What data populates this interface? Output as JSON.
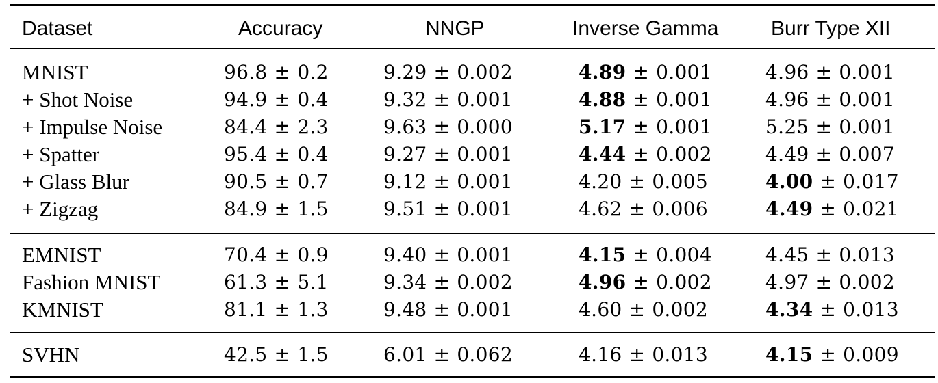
{
  "headers": [
    "Dataset",
    "Accuracy",
    "NNGP",
    "Inverse Gamma",
    "Burr Type XII"
  ],
  "rows": [
    {
      "dataset": "MNIST",
      "accuracy": {
        "mean": "96.8",
        "std": "0.2"
      },
      "nngp": {
        "mean": "9.29",
        "std": "0.002"
      },
      "inverse_gamma": {
        "mean": "4.89",
        "std": "0.001"
      },
      "burr": {
        "mean": "4.96",
        "std": "0.001"
      },
      "bold": "inverse_gamma"
    },
    {
      "dataset": "+ Shot Noise",
      "accuracy": {
        "mean": "94.9",
        "std": "0.4"
      },
      "nngp": {
        "mean": "9.32",
        "std": "0.001"
      },
      "inverse_gamma": {
        "mean": "4.88",
        "std": "0.001"
      },
      "burr": {
        "mean": "4.96",
        "std": "0.001"
      },
      "bold": "inverse_gamma"
    },
    {
      "dataset": "+ Impulse Noise",
      "accuracy": {
        "mean": "84.4",
        "std": "2.3"
      },
      "nngp": {
        "mean": "9.63",
        "std": "0.000"
      },
      "inverse_gamma": {
        "mean": "5.17",
        "std": "0.001"
      },
      "burr": {
        "mean": "5.25",
        "std": "0.001"
      },
      "bold": "inverse_gamma"
    },
    {
      "dataset": "+ Spatter",
      "accuracy": {
        "mean": "95.4",
        "std": "0.4"
      },
      "nngp": {
        "mean": "9.27",
        "std": "0.001"
      },
      "inverse_gamma": {
        "mean": "4.44",
        "std": "0.002"
      },
      "burr": {
        "mean": "4.49",
        "std": "0.007"
      },
      "bold": "inverse_gamma"
    },
    {
      "dataset": "+ Glass Blur",
      "accuracy": {
        "mean": "90.5",
        "std": "0.7"
      },
      "nngp": {
        "mean": "9.12",
        "std": "0.001"
      },
      "inverse_gamma": {
        "mean": "4.20",
        "std": "0.005"
      },
      "burr": {
        "mean": "4.00",
        "std": "0.017"
      },
      "bold": "burr"
    },
    {
      "dataset": "+ Zigzag",
      "accuracy": {
        "mean": "84.9",
        "std": "1.5"
      },
      "nngp": {
        "mean": "9.51",
        "std": "0.001"
      },
      "inverse_gamma": {
        "mean": "4.62",
        "std": "0.006"
      },
      "burr": {
        "mean": "4.49",
        "std": "0.021"
      },
      "bold": "burr"
    },
    {
      "dataset": "EMNIST",
      "accuracy": {
        "mean": "70.4",
        "std": "0.9"
      },
      "nngp": {
        "mean": "9.40",
        "std": "0.001"
      },
      "inverse_gamma": {
        "mean": "4.15",
        "std": "0.004"
      },
      "burr": {
        "mean": "4.45",
        "std": "0.013"
      },
      "bold": "inverse_gamma"
    },
    {
      "dataset": "Fashion MNIST",
      "accuracy": {
        "mean": "61.3",
        "std": "5.1"
      },
      "nngp": {
        "mean": "9.34",
        "std": "0.002"
      },
      "inverse_gamma": {
        "mean": "4.96",
        "std": "0.002"
      },
      "burr": {
        "mean": "4.97",
        "std": "0.002"
      },
      "bold": "inverse_gamma"
    },
    {
      "dataset": "KMNIST",
      "accuracy": {
        "mean": "81.1",
        "std": "1.3"
      },
      "nngp": {
        "mean": "9.48",
        "std": "0.001"
      },
      "inverse_gamma": {
        "mean": "4.60",
        "std": "0.002"
      },
      "burr": {
        "mean": "4.34",
        "std": "0.013"
      },
      "bold": "burr"
    },
    {
      "dataset": "SVHN",
      "accuracy": {
        "mean": "42.5",
        "std": "1.5"
      },
      "nngp": {
        "mean": "6.01",
        "std": "0.062"
      },
      "inverse_gamma": {
        "mean": "4.16",
        "std": "0.013"
      },
      "burr": {
        "mean": "4.15",
        "std": "0.009"
      },
      "bold": "burr"
    }
  ],
  "pm_symbol": "±"
}
